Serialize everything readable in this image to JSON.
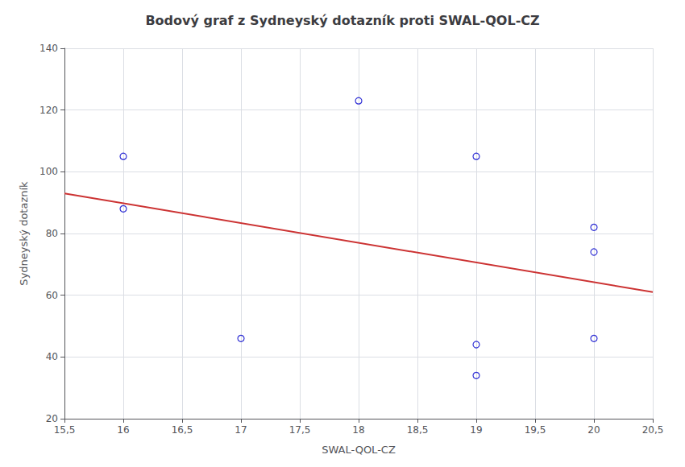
{
  "chart_data": {
    "type": "scatter",
    "title": "Bodový graf z Sydneyský dotazník proti SWAL-QOL-CZ",
    "xlabel": "SWAL-QOL-CZ",
    "ylabel": "Sydneyský dotazník",
    "series": [
      {
        "type": "scatter",
        "color": "#0000CC",
        "marker": "open circle",
        "x": [
          16,
          16,
          17,
          18,
          19,
          19,
          19,
          20,
          20,
          20
        ],
        "values": [
          105,
          88,
          46,
          123,
          105,
          44,
          34,
          82,
          74,
          46
        ]
      },
      {
        "type": "line",
        "color": "#CC3333",
        "line_style": "solid",
        "x": [
          15.5,
          20.5
        ],
        "values": [
          93.0,
          61.0
        ]
      }
    ],
    "xlim": [
      15.5,
      20.5
    ],
    "ylim": [
      20,
      140
    ],
    "xticks": [
      {
        "value": 15.5,
        "label": "15,5"
      },
      16,
      {
        "value": 16.5,
        "label": "16,5"
      },
      17,
      {
        "value": 17.5,
        "label": "17,5"
      },
      18,
      {
        "value": 18.5,
        "label": "18,5"
      },
      19,
      {
        "value": 19.5,
        "label": "19,5"
      },
      20,
      {
        "value": 20.5,
        "label": "20,5"
      }
    ],
    "yticks": [
      20,
      40,
      60,
      80,
      100,
      120,
      140
    ],
    "grid": true
  }
}
